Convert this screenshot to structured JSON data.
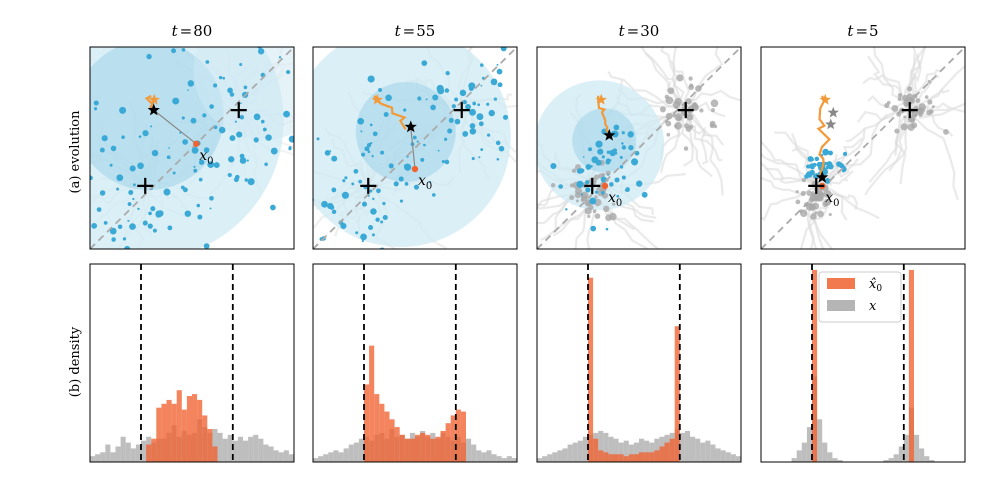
{
  "row_labels": {
    "evolution": "(a) evolution",
    "density": "(b) density"
  },
  "colors": {
    "blue": "#3aa9d6",
    "blue_light": "#cfe9f4",
    "orange": "#f0622f",
    "orange_track": "#f29a3a",
    "gray": "#a8a8a8",
    "gray_light": "#dcdcdc",
    "diag": "#aaaaaa"
  },
  "chart_data": [
    {
      "panel": "evolution",
      "type": "scatter",
      "title_prefix": "t",
      "title_eq": "=",
      "title_value": "80",
      "annotation": "x",
      "annotation_sub": "0",
      "centers": [
        [
          -0.55,
          -0.45
        ],
        [
          0.55,
          0.45
        ]
      ],
      "x0": [
        0.05,
        0.05
      ],
      "xhat0": [
        -0.45,
        0.45
      ],
      "phase": 0
    },
    {
      "panel": "evolution",
      "type": "scatter",
      "title_prefix": "t",
      "title_eq": "=",
      "title_value": "55",
      "annotation": "x",
      "annotation_sub": "0",
      "centers": [
        [
          -0.55,
          -0.45
        ],
        [
          0.55,
          0.45
        ]
      ],
      "x0": [
        0.0,
        -0.25
      ],
      "xhat0": [
        -0.05,
        0.25
      ],
      "phase": 1
    },
    {
      "panel": "evolution",
      "type": "scatter",
      "title_prefix": "t",
      "title_eq": "=",
      "title_value": "30",
      "annotation": "x",
      "annotation_sub": "0",
      "centers": [
        [
          -0.55,
          -0.45
        ],
        [
          0.55,
          0.45
        ]
      ],
      "x0": [
        -0.4,
        -0.45
      ],
      "xhat0": [
        -0.35,
        0.15
      ],
      "phase": 2
    },
    {
      "panel": "evolution",
      "type": "scatter",
      "title_prefix": "t",
      "title_eq": "=",
      "title_value": "5",
      "annotation": "x",
      "annotation_sub": "0",
      "centers": [
        [
          -0.55,
          -0.45
        ],
        [
          0.55,
          0.45
        ]
      ],
      "x0": [
        -0.48,
        -0.45
      ],
      "xhat0": [
        -0.48,
        -0.35
      ],
      "phase": 3
    },
    {
      "panel": "density",
      "type": "bar",
      "xlim": [
        -1.5,
        1.5
      ],
      "ylim": [
        0,
        1.0
      ],
      "vlines": [
        -0.75,
        0.6
      ],
      "bin_edges_start": -1.5,
      "bin_width": 0.075,
      "x_hist": [
        0.03,
        0.04,
        0.05,
        0.09,
        0.05,
        0.08,
        0.13,
        0.1,
        0.07,
        0.09,
        0.11,
        0.13,
        0.1,
        0.12,
        0.12,
        0.15,
        0.19,
        0.13,
        0.16,
        0.14,
        0.15,
        0.22,
        0.18,
        0.15,
        0.17,
        0.15,
        0.12,
        0.14,
        0.11,
        0.13,
        0.11,
        0.13,
        0.14,
        0.12,
        0.09,
        0.08,
        0.06,
        0.05,
        0.06,
        0.04
      ],
      "xhat_hist": [
        0,
        0,
        0,
        0,
        0,
        0,
        0,
        0,
        0,
        0,
        0,
        0.09,
        0.12,
        0.28,
        0.3,
        0.32,
        0.3,
        0.37,
        0.27,
        0.34,
        0.35,
        0.32,
        0.24,
        0.17,
        0.08,
        0,
        0,
        0,
        0,
        0,
        0,
        0,
        0,
        0,
        0,
        0,
        0,
        0,
        0,
        0
      ],
      "legend": []
    },
    {
      "panel": "density",
      "type": "bar",
      "xlim": [
        -1.5,
        1.5
      ],
      "ylim": [
        0,
        1.0
      ],
      "vlines": [
        -0.75,
        0.6
      ],
      "bin_edges_start": -1.5,
      "bin_width": 0.075,
      "x_hist": [
        0.02,
        0.03,
        0.04,
        0.05,
        0.06,
        0.05,
        0.07,
        0.09,
        0.1,
        0.12,
        0.13,
        0.11,
        0.14,
        0.15,
        0.12,
        0.17,
        0.13,
        0.14,
        0.12,
        0.15,
        0.13,
        0.16,
        0.13,
        0.15,
        0.12,
        0.15,
        0.13,
        0.11,
        0.13,
        0.1,
        0.12,
        0.09,
        0.06,
        0.05,
        0.06,
        0.04,
        0.03,
        0.02,
        0.03,
        0.02
      ],
      "xhat_hist": [
        0,
        0,
        0,
        0,
        0,
        0,
        0,
        0,
        0,
        0,
        0.4,
        0.6,
        0.35,
        0.3,
        0.26,
        0.22,
        0.18,
        0.14,
        0.12,
        0.12,
        0.14,
        0.15,
        0.14,
        0.12,
        0.13,
        0.16,
        0.2,
        0.24,
        0.27,
        0.26,
        0,
        0,
        0,
        0,
        0,
        0,
        0,
        0,
        0,
        0
      ],
      "legend": []
    },
    {
      "panel": "density",
      "type": "bar",
      "xlim": [
        -1.5,
        1.5
      ],
      "ylim": [
        0,
        1.0
      ],
      "vlines": [
        -0.75,
        0.6
      ],
      "bin_edges_start": -1.5,
      "bin_width": 0.075,
      "x_hist": [
        0.02,
        0.03,
        0.04,
        0.05,
        0.06,
        0.07,
        0.09,
        0.1,
        0.11,
        0.13,
        0.14,
        0.15,
        0.16,
        0.15,
        0.13,
        0.12,
        0.1,
        0.11,
        0.09,
        0.1,
        0.12,
        0.11,
        0.1,
        0.12,
        0.13,
        0.14,
        0.15,
        0.17,
        0.15,
        0.16,
        0.13,
        0.12,
        0.1,
        0.11,
        0.09,
        0.07,
        0.06,
        0.05,
        0.04,
        0.03
      ],
      "xhat_hist": [
        0,
        0,
        0,
        0,
        0,
        0,
        0,
        0,
        0,
        0,
        0.95,
        0.12,
        0.06,
        0.05,
        0.04,
        0.04,
        0.04,
        0.03,
        0.04,
        0.04,
        0.05,
        0.05,
        0.05,
        0.06,
        0.08,
        0.1,
        0.12,
        0.7,
        0,
        0,
        0,
        0,
        0,
        0,
        0,
        0,
        0,
        0,
        0,
        0
      ],
      "legend": []
    },
    {
      "panel": "density",
      "type": "bar",
      "xlim": [
        -1.5,
        1.5
      ],
      "ylim": [
        0,
        1.0
      ],
      "vlines": [
        -0.75,
        0.6
      ],
      "bin_edges_start": -1.5,
      "bin_width": 0.075,
      "x_hist": [
        0,
        0,
        0,
        0,
        0,
        0,
        0.02,
        0.06,
        0.1,
        0.18,
        0.44,
        0.22,
        0.1,
        0.05,
        0.02,
        0.01,
        0,
        0,
        0,
        0,
        0,
        0,
        0,
        0,
        0.01,
        0.02,
        0.04,
        0.08,
        0.14,
        0.28,
        0.14,
        0.07,
        0.03,
        0.01,
        0,
        0,
        0,
        0,
        0,
        0
      ],
      "xhat_hist": [
        0,
        0,
        0,
        0,
        0,
        0,
        0,
        0,
        0,
        0,
        0.99,
        0,
        0,
        0,
        0,
        0,
        0,
        0,
        0,
        0,
        0,
        0,
        0,
        0,
        0,
        0,
        0,
        0,
        0,
        0.99,
        0,
        0,
        0,
        0,
        0,
        0,
        0,
        0,
        0,
        0
      ],
      "legend": [
        {
          "label": "x̂",
          "sub": "0",
          "color": "#f0622f"
        },
        {
          "label": "x",
          "sub": "",
          "color": "#a8a8a8"
        }
      ]
    }
  ]
}
